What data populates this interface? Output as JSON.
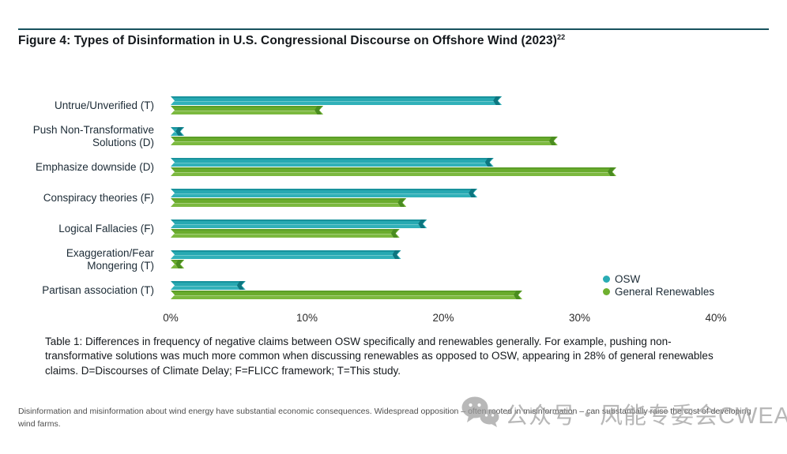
{
  "page": {
    "title": "Figure 4: Types of Disinformation in U.S. Congressional Discourse on Offshore Wind (2023)",
    "title_superscript": "22",
    "rule_color": "#17525e"
  },
  "chart_data": {
    "type": "bar",
    "orientation": "horizontal",
    "title": "Figure 4: Types of Disinformation in U.S. Congressional Discourse on Offshore Wind (2023)",
    "categories": [
      "Untrue/Unverified (T)",
      "Push Non-Transformative Solutions (D)",
      "Emphasize downside (D)",
      "Conspiracy theories (F)",
      "Logical Fallacies (F)",
      "Exaggeration/Fear Mongering (T)",
      "Partisan association (T)"
    ],
    "label_lines": [
      [
        "Untrue/Unverified (T)"
      ],
      [
        "Push Non-Transformative",
        "Solutions (D)"
      ],
      [
        "Emphasize downside (D)"
      ],
      [
        "Conspiracy theories (F)"
      ],
      [
        "Logical Fallacies (F)"
      ],
      [
        "Exaggeration/Fear",
        "Mongering (T)"
      ],
      [
        "Partisan association (T)"
      ]
    ],
    "series": [
      {
        "name": "OSW",
        "color": "#29acb4",
        "values": [
          24.3,
          1,
          23.7,
          22.5,
          18.8,
          16.9,
          5.5
        ]
      },
      {
        "name": "General Renewables",
        "color": "#6fb02f",
        "values": [
          11.2,
          28.4,
          32.7,
          17.3,
          16.8,
          1,
          25.8
        ]
      }
    ],
    "xlabel": "",
    "ylabel": "",
    "xlim": [
      0,
      40
    ],
    "x_ticks": [
      "0%",
      "10%",
      "20%",
      "30%",
      "40%"
    ],
    "grid": false,
    "legend_position": "right-bottom",
    "unit": "percent of claims"
  },
  "caption": {
    "text": "Table 1: Differences in frequency of negative claims between OSW specifically and renewables generally. For example, pushing non-transformative solutions was much more common when discussing renewables as opposed to OSW, appearing in 28% of general renewables claims. D=Discourses of Climate Delay; F=FLICC framework; T=This study."
  },
  "footer": {
    "text": "Disinformation and misinformation about wind energy have substantial economic consequences. Widespread opposition – often rooted in misinformation – can substantially raise the cost of developing wind farms."
  },
  "watermark": {
    "icon": "wechat-icon",
    "text": "公众号・风能专委会CWEA"
  }
}
